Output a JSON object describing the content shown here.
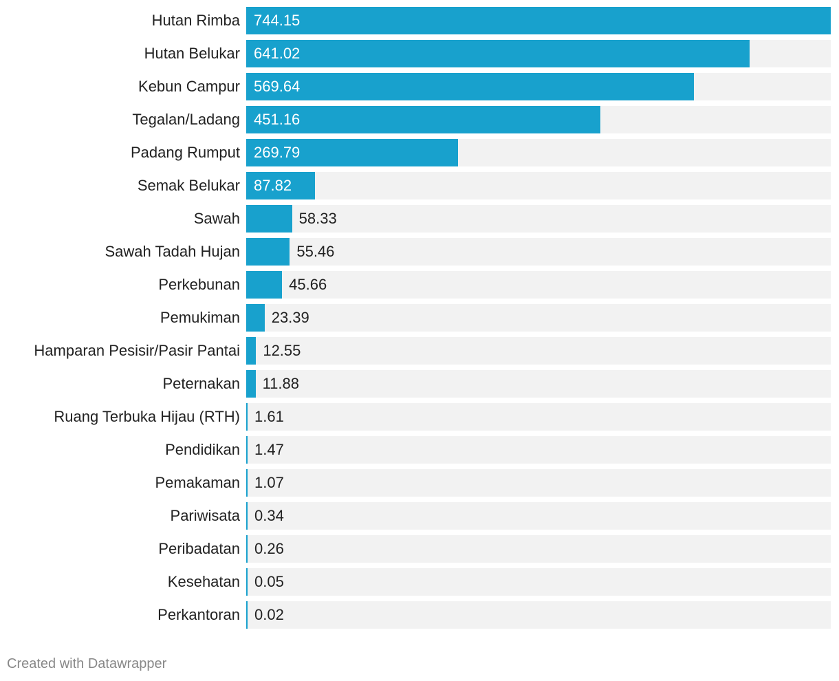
{
  "chart_data": {
    "type": "bar",
    "orientation": "horizontal",
    "title": "",
    "xlabel": "",
    "ylabel": "",
    "xlim": [
      0,
      744.15
    ],
    "grid": false,
    "legend": "none",
    "color": "#18a1cd",
    "track_color": "#f2f2f2",
    "categories": [
      "Hutan Rimba",
      "Hutan Belukar",
      "Kebun Campur",
      "Tegalan/Ladang",
      "Padang Rumput",
      "Semak Belukar",
      "Sawah",
      "Sawah Tadah Hujan",
      "Perkebunan",
      "Pemukiman",
      "Hamparan Pesisir/Pasir Pantai",
      "Peternakan",
      "Ruang Terbuka Hijau (RTH)",
      "Pendidikan",
      "Pemakaman",
      "Pariwisata",
      "Peribadatan",
      "Kesehatan",
      "Perkantoran"
    ],
    "values": [
      744.15,
      641.02,
      569.64,
      451.16,
      269.79,
      87.82,
      58.33,
      55.46,
      45.66,
      23.39,
      12.55,
      11.88,
      1.61,
      1.47,
      1.07,
      0.34,
      0.26,
      0.05,
      0.02
    ],
    "value_labels": [
      "744.15",
      "641.02",
      "569.64",
      "451.16",
      "269.79",
      "87.82",
      "58.33",
      "55.46",
      "45.66",
      "23.39",
      "12.55",
      "11.88",
      "1.61",
      "1.47",
      "1.07",
      "0.34",
      "0.26",
      "0.05",
      "0.02"
    ]
  },
  "footer": {
    "credit": "Created with Datawrapper"
  }
}
